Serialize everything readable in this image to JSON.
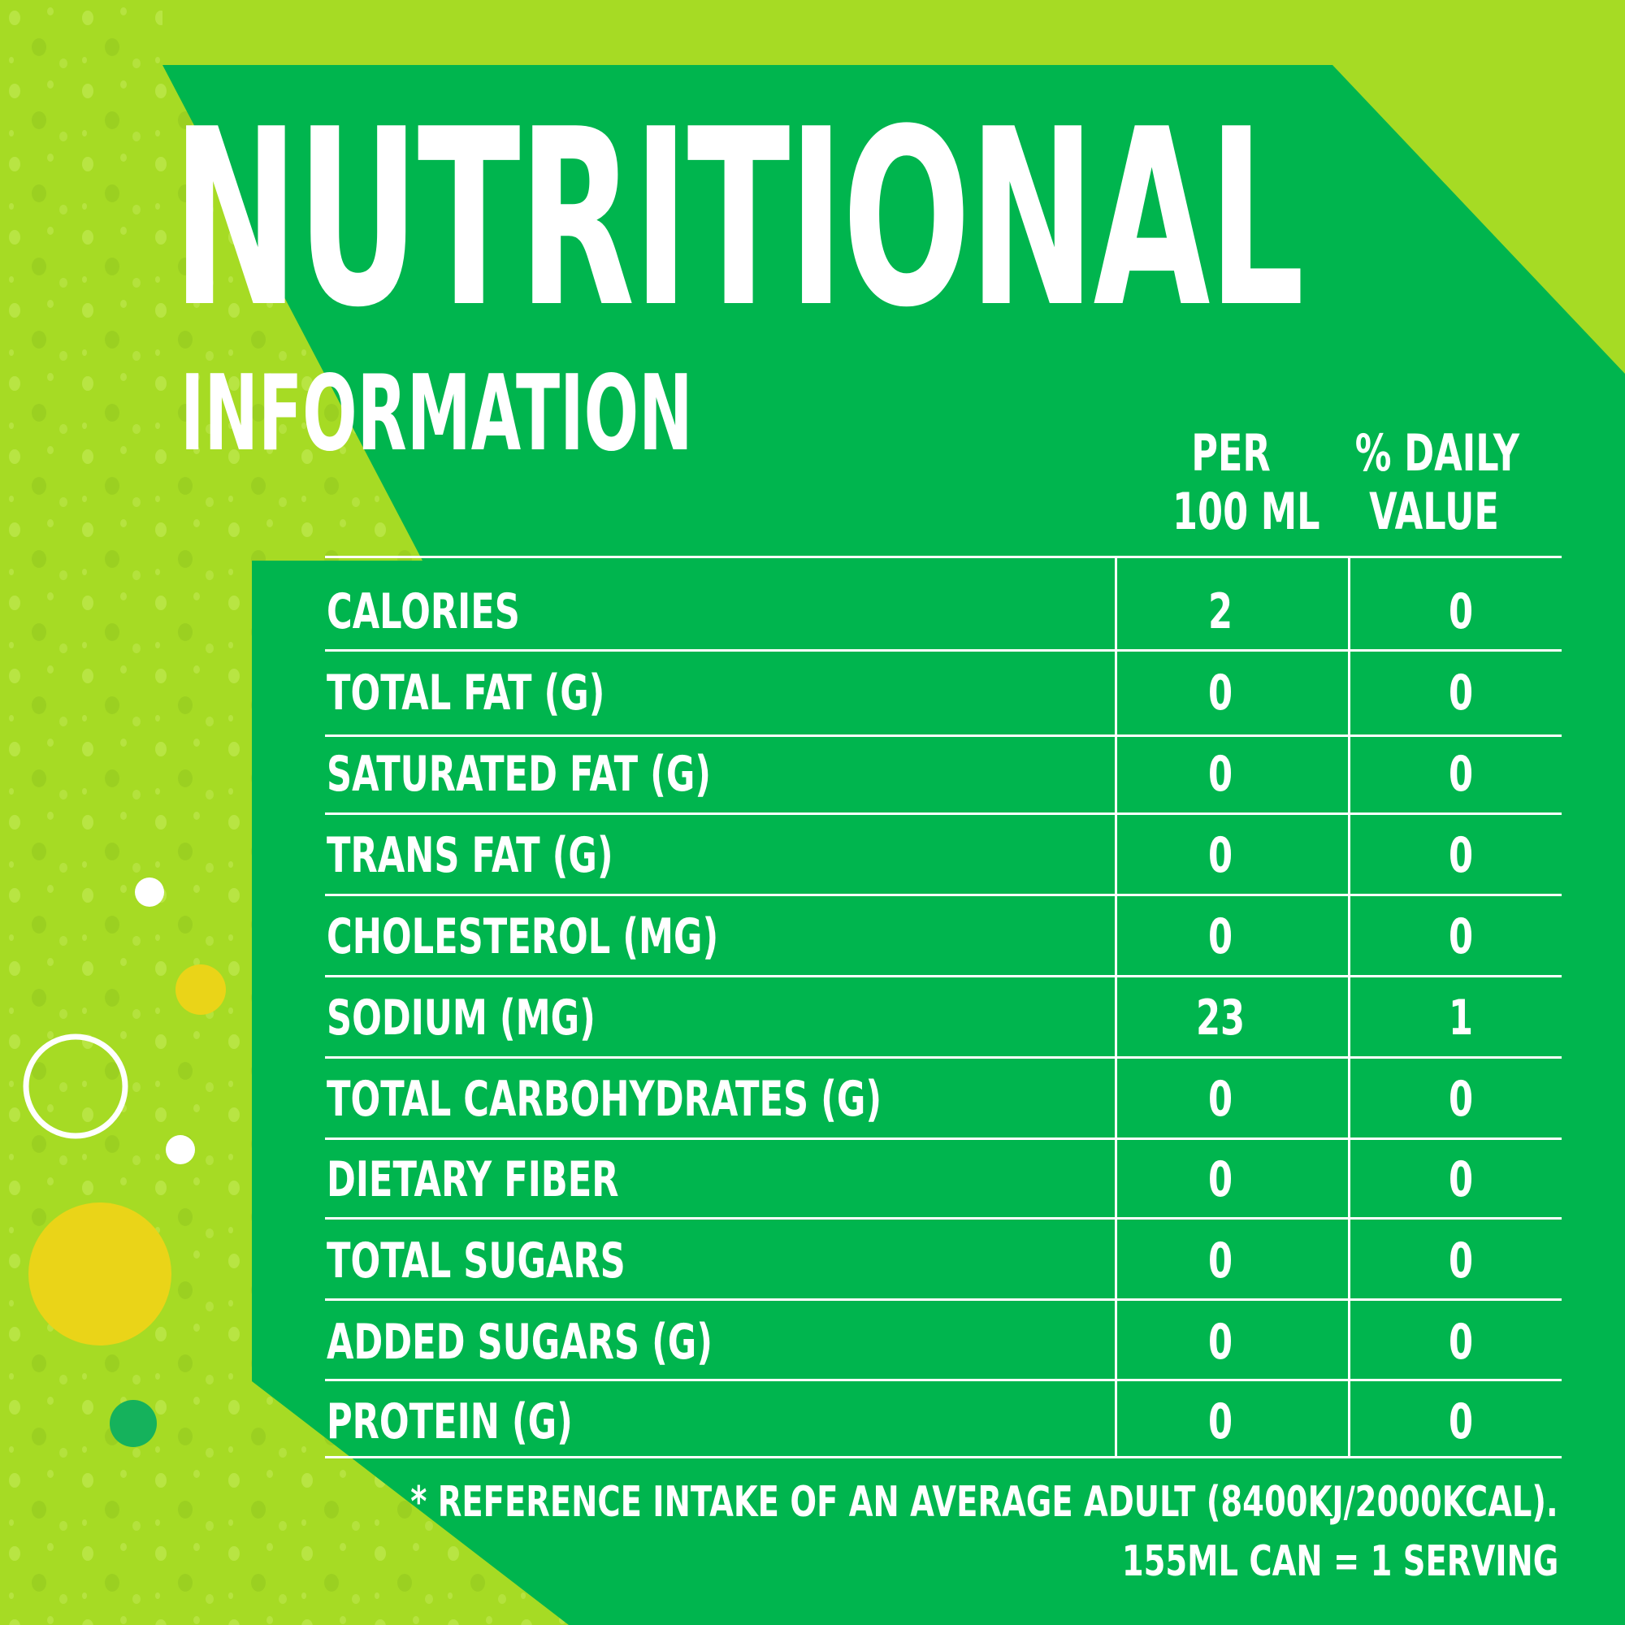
{
  "colors": {
    "lime_background": "#a8dd2a",
    "green_panel": "#00b54e",
    "text": "#ffffff",
    "yellow_dot": "#ead418",
    "dark_green_dot": "#15b25c"
  },
  "header": {
    "title": "NUTRITIONAL",
    "subtitle": "INFORMATION"
  },
  "table": {
    "columns": {
      "per_line1": "PER",
      "per_line2": "100 ML",
      "dv_line1": "% DAILY",
      "dv_line2": "VALUE"
    },
    "rows": [
      {
        "label": "CALORIES",
        "per": "2",
        "dv": "0"
      },
      {
        "label": "TOTAL FAT (G)",
        "per": "0",
        "dv": "0"
      },
      {
        "label": "SATURATED FAT (G)",
        "per": "0",
        "dv": "0"
      },
      {
        "label": "TRANS FAT (G)",
        "per": "0",
        "dv": "0"
      },
      {
        "label": "CHOLESTEROL (MG)",
        "per": "0",
        "dv": "0"
      },
      {
        "label": "SODIUM (MG)",
        "per": "23",
        "dv": "1"
      },
      {
        "label": "TOTAL CARBOHYDRATES (G)",
        "per": "0",
        "dv": "0"
      },
      {
        "label": "DIETARY FIBER",
        "per": "0",
        "dv": "0"
      },
      {
        "label": "TOTAL SUGARS",
        "per": "0",
        "dv": "0"
      },
      {
        "label": "ADDED SUGARS (G)",
        "per": "0",
        "dv": "0"
      },
      {
        "label": "PROTEIN (G)",
        "per": "0",
        "dv": "0"
      }
    ]
  },
  "footnote": {
    "line1": "* REFERENCE INTAKE OF AN AVERAGE ADULT (8400KJ/2000KCAL).",
    "line2": "155ML CAN = 1 SERVING"
  }
}
